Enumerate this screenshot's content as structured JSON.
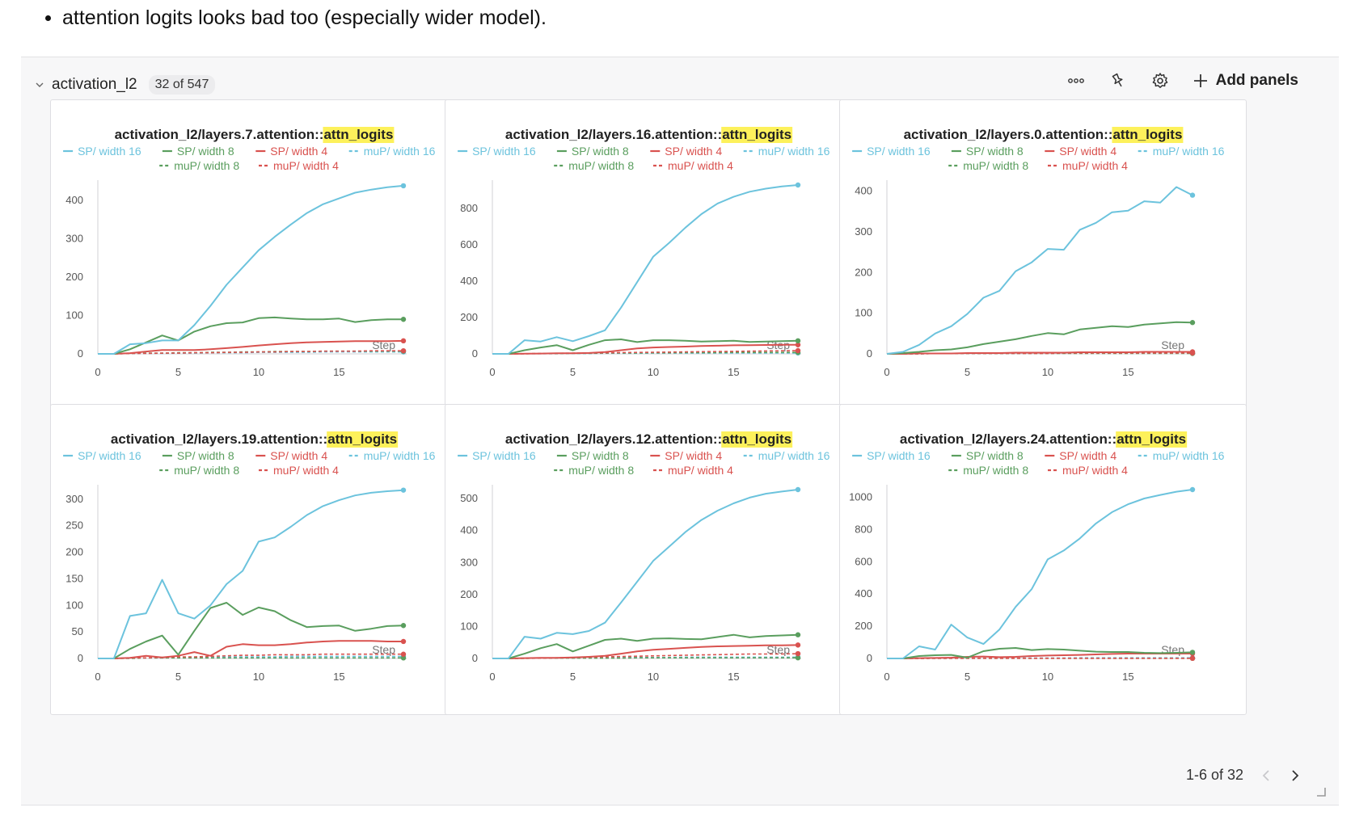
{
  "note": "attention logits looks bad too (especially wider model).",
  "section": {
    "title": "activation_l2",
    "count": "32 of 547",
    "add_panels_label": "Add panels",
    "pager_text": "1-6 of 32"
  },
  "legend": [
    {
      "label": "SP/ width 16",
      "color": "#6cc3dd",
      "dash": false
    },
    {
      "label": "SP/ width 8",
      "color": "#5a9e5e",
      "dash": false
    },
    {
      "label": "SP/ width 4",
      "color": "#d9524f",
      "dash": false
    },
    {
      "label": "muP/ width 16",
      "color": "#6cc3dd",
      "dash": true
    },
    {
      "label": "muP/ width 8",
      "color": "#5a9e5e",
      "dash": true
    },
    {
      "label": "muP/ width 4",
      "color": "#d9524f",
      "dash": true
    }
  ],
  "chart_data": [
    {
      "type": "line",
      "title_prefix": "activation_l2/layers.7.attention::",
      "title_highlight": "attn_logits",
      "xlabel": "Step",
      "x": [
        0,
        1,
        2,
        3,
        4,
        5,
        6,
        7,
        8,
        9,
        10,
        11,
        12,
        13,
        14,
        15,
        16,
        17,
        18,
        19
      ],
      "xticks": [
        0,
        5,
        10,
        15
      ],
      "ylim": [
        0,
        440
      ],
      "yticks": [
        0,
        100,
        200,
        300,
        400
      ],
      "series": [
        {
          "name": "SP/ width 16",
          "values": [
            0,
            0,
            25,
            28,
            35,
            35,
            75,
            125,
            180,
            225,
            270,
            305,
            337,
            367,
            390,
            405,
            420,
            428,
            434,
            438
          ]
        },
        {
          "name": "SP/ width 8",
          "values": [
            0,
            0,
            12,
            30,
            48,
            35,
            58,
            72,
            80,
            82,
            93,
            95,
            92,
            90,
            90,
            92,
            83,
            88,
            90,
            90
          ]
        },
        {
          "name": "SP/ width 4",
          "values": [
            0,
            0,
            2,
            6,
            10,
            10,
            10,
            12,
            15,
            18,
            22,
            25,
            28,
            30,
            31,
            32,
            33,
            33,
            33,
            34
          ]
        },
        {
          "name": "muP/ width 16",
          "values": [
            0,
            0,
            1,
            1,
            1,
            2,
            2,
            3,
            3,
            3,
            4,
            4,
            4,
            4,
            5,
            5,
            5,
            5,
            5,
            5
          ]
        },
        {
          "name": "muP/ width 8",
          "values": [
            0,
            0,
            1,
            2,
            2,
            3,
            3,
            4,
            4,
            5,
            5,
            6,
            6,
            6,
            7,
            7,
            7,
            7,
            7,
            7
          ]
        },
        {
          "name": "muP/ width 4",
          "values": [
            0,
            0,
            1,
            1,
            2,
            2,
            3,
            3,
            4,
            4,
            5,
            5,
            6,
            6,
            7,
            7,
            7,
            8,
            8,
            8
          ]
        }
      ]
    },
    {
      "type": "line",
      "title_prefix": "activation_l2/layers.16.attention::",
      "title_highlight": "attn_logits",
      "xlabel": "Step",
      "x": [
        0,
        1,
        2,
        3,
        4,
        5,
        6,
        7,
        8,
        9,
        10,
        11,
        12,
        13,
        14,
        15,
        16,
        17,
        18,
        19
      ],
      "xticks": [
        0,
        5,
        10,
        15
      ],
      "ylim": [
        0,
        930
      ],
      "yticks": [
        0,
        200,
        400,
        600,
        800
      ],
      "series": [
        {
          "name": "SP/ width 16",
          "values": [
            0,
            0,
            75,
            68,
            92,
            70,
            98,
            130,
            255,
            395,
            535,
            612,
            695,
            770,
            828,
            865,
            893,
            910,
            922,
            930
          ]
        },
        {
          "name": "SP/ width 8",
          "values": [
            0,
            0,
            20,
            35,
            48,
            20,
            50,
            75,
            80,
            65,
            75,
            75,
            72,
            68,
            70,
            72,
            66,
            68,
            70,
            72
          ]
        },
        {
          "name": "SP/ width 4",
          "values": [
            0,
            0,
            1,
            2,
            3,
            3,
            5,
            10,
            20,
            30,
            35,
            38,
            40,
            43,
            45,
            47,
            48,
            49,
            50,
            50
          ]
        },
        {
          "name": "muP/ width 16",
          "values": [
            0,
            0,
            1,
            1,
            1,
            2,
            2,
            3,
            3,
            3,
            4,
            4,
            4,
            4,
            5,
            5,
            5,
            5,
            5,
            5
          ]
        },
        {
          "name": "muP/ width 8",
          "values": [
            0,
            0,
            1,
            2,
            2,
            3,
            3,
            4,
            5,
            5,
            6,
            6,
            7,
            7,
            7,
            8,
            8,
            8,
            8,
            8
          ]
        },
        {
          "name": "muP/ width 4",
          "values": [
            0,
            0,
            1,
            2,
            3,
            4,
            5,
            6,
            7,
            8,
            9,
            10,
            11,
            12,
            13,
            14,
            15,
            16,
            17,
            18
          ]
        }
      ]
    },
    {
      "type": "line",
      "title_prefix": "activation_l2/layers.0.attention::",
      "title_highlight": "attn_logits",
      "xlabel": "Step",
      "x": [
        0,
        1,
        2,
        3,
        4,
        5,
        6,
        7,
        8,
        9,
        10,
        11,
        12,
        13,
        14,
        15,
        16,
        17,
        18,
        19
      ],
      "xticks": [
        0,
        5,
        10,
        15
      ],
      "ylim": [
        0,
        415
      ],
      "yticks": [
        0,
        100,
        200,
        300,
        400
      ],
      "series": [
        {
          "name": "SP/ width 16",
          "values": [
            0,
            5,
            22,
            50,
            68,
            98,
            138,
            155,
            203,
            225,
            258,
            256,
            305,
            322,
            348,
            352,
            375,
            372,
            410,
            390
          ]
        },
        {
          "name": "SP/ width 8",
          "values": [
            0,
            2,
            5,
            9,
            11,
            16,
            24,
            30,
            36,
            44,
            51,
            48,
            60,
            64,
            68,
            66,
            72,
            75,
            78,
            77
          ]
        },
        {
          "name": "SP/ width 4",
          "values": [
            0,
            0,
            1,
            1,
            1,
            2,
            2,
            2,
            3,
            3,
            3,
            3,
            4,
            4,
            4,
            4,
            5,
            5,
            5,
            5
          ]
        },
        {
          "name": "muP/ width 16",
          "values": [
            0,
            0,
            0,
            1,
            1,
            1,
            1,
            1,
            1,
            2,
            2,
            2,
            2,
            2,
            2,
            2,
            2,
            2,
            2,
            2
          ]
        },
        {
          "name": "muP/ width 8",
          "values": [
            0,
            0,
            0,
            1,
            1,
            1,
            1,
            1,
            1,
            1,
            1,
            1,
            1,
            1,
            1,
            1,
            1,
            1,
            1,
            1
          ]
        },
        {
          "name": "muP/ width 4",
          "values": [
            0,
            0,
            0,
            1,
            1,
            1,
            1,
            1,
            1,
            1,
            1,
            2,
            2,
            2,
            2,
            2,
            2,
            2,
            2,
            2
          ]
        }
      ]
    },
    {
      "type": "line",
      "title_prefix": "activation_l2/layers.19.attention::",
      "title_highlight": "attn_logits",
      "xlabel": "Step",
      "x": [
        0,
        1,
        2,
        3,
        4,
        5,
        6,
        7,
        8,
        9,
        10,
        11,
        12,
        13,
        14,
        15,
        16,
        17,
        18,
        19
      ],
      "xticks": [
        0,
        5,
        10,
        15
      ],
      "ylim": [
        0,
        318
      ],
      "yticks": [
        0,
        50,
        100,
        150,
        200,
        250,
        300
      ],
      "series": [
        {
          "name": "SP/ width 16",
          "values": [
            0,
            0,
            80,
            85,
            148,
            85,
            75,
            100,
            140,
            165,
            220,
            228,
            248,
            270,
            287,
            298,
            307,
            312,
            315,
            317
          ]
        },
        {
          "name": "SP/ width 8",
          "values": [
            0,
            0,
            18,
            32,
            43,
            7,
            52,
            95,
            105,
            82,
            96,
            89,
            72,
            59,
            61,
            62,
            52,
            56,
            61,
            62
          ]
        },
        {
          "name": "SP/ width 4",
          "values": [
            0,
            0,
            1,
            5,
            2,
            5,
            12,
            5,
            22,
            27,
            25,
            25,
            27,
            30,
            32,
            33,
            33,
            33,
            32,
            32
          ]
        },
        {
          "name": "muP/ width 16",
          "values": [
            0,
            0,
            1,
            1,
            1,
            2,
            2,
            2,
            3,
            3,
            3,
            3,
            4,
            4,
            4,
            4,
            4,
            4,
            4,
            4
          ]
        },
        {
          "name": "muP/ width 8",
          "values": [
            0,
            0,
            0,
            1,
            1,
            1,
            1,
            1,
            1,
            1,
            1,
            1,
            1,
            1,
            1,
            1,
            1,
            1,
            1,
            1
          ]
        },
        {
          "name": "muP/ width 4",
          "values": [
            0,
            0,
            1,
            1,
            2,
            3,
            3,
            4,
            5,
            6,
            6,
            7,
            7,
            7,
            8,
            8,
            8,
            8,
            8,
            8
          ]
        }
      ]
    },
    {
      "type": "line",
      "title_prefix": "activation_l2/layers.12.attention::",
      "title_highlight": "attn_logits",
      "xlabel": "Step",
      "x": [
        0,
        1,
        2,
        3,
        4,
        5,
        6,
        7,
        8,
        9,
        10,
        11,
        12,
        13,
        14,
        15,
        16,
        17,
        18,
        19
      ],
      "xticks": [
        0,
        5,
        10,
        15
      ],
      "ylim": [
        0,
        528
      ],
      "yticks": [
        0,
        100,
        200,
        300,
        400,
        500
      ],
      "series": [
        {
          "name": "SP/ width 16",
          "values": [
            0,
            0,
            68,
            62,
            80,
            76,
            86,
            112,
            175,
            240,
            305,
            350,
            395,
            433,
            462,
            485,
            503,
            515,
            522,
            528
          ]
        },
        {
          "name": "SP/ width 8",
          "values": [
            0,
            0,
            15,
            32,
            45,
            22,
            40,
            58,
            62,
            55,
            62,
            63,
            61,
            60,
            67,
            74,
            66,
            70,
            72,
            74
          ]
        },
        {
          "name": "SP/ width 4",
          "values": [
            0,
            0,
            1,
            2,
            2,
            3,
            5,
            8,
            15,
            22,
            27,
            30,
            33,
            36,
            38,
            39,
            40,
            41,
            41,
            42
          ]
        },
        {
          "name": "muP/ width 16",
          "values": [
            0,
            0,
            1,
            1,
            1,
            2,
            2,
            2,
            3,
            3,
            3,
            3,
            4,
            4,
            4,
            4,
            4,
            4,
            4,
            4
          ]
        },
        {
          "name": "muP/ width 8",
          "values": [
            0,
            0,
            0,
            1,
            1,
            1,
            1,
            1,
            1,
            2,
            2,
            2,
            2,
            2,
            2,
            2,
            2,
            2,
            2,
            2
          ]
        },
        {
          "name": "muP/ width 4",
          "values": [
            0,
            0,
            1,
            1,
            2,
            3,
            4,
            5,
            6,
            7,
            8,
            9,
            10,
            11,
            12,
            13,
            14,
            14,
            14,
            15
          ]
        }
      ]
    },
    {
      "type": "line",
      "title_prefix": "activation_l2/layers.24.attention::",
      "title_highlight": "attn_logits",
      "xlabel": "Step",
      "x": [
        0,
        1,
        2,
        3,
        4,
        5,
        6,
        7,
        8,
        9,
        10,
        11,
        12,
        13,
        14,
        15,
        16,
        17,
        18,
        19
      ],
      "xticks": [
        0,
        5,
        10,
        15
      ],
      "ylim": [
        0,
        1048
      ],
      "yticks": [
        0,
        200,
        400,
        600,
        800,
        1000
      ],
      "series": [
        {
          "name": "SP/ width 16",
          "values": [
            0,
            0,
            75,
            55,
            210,
            130,
            90,
            180,
            320,
            430,
            615,
            670,
            745,
            838,
            908,
            957,
            993,
            1015,
            1035,
            1048
          ]
        },
        {
          "name": "SP/ width 8",
          "values": [
            0,
            0,
            15,
            20,
            22,
            5,
            45,
            60,
            65,
            52,
            58,
            55,
            48,
            42,
            40,
            40,
            35,
            33,
            35,
            38
          ]
        },
        {
          "name": "SP/ width 4",
          "values": [
            0,
            0,
            2,
            3,
            5,
            10,
            12,
            8,
            10,
            15,
            18,
            20,
            22,
            25,
            28,
            30,
            30,
            30,
            30,
            30
          ]
        },
        {
          "name": "muP/ width 16",
          "values": [
            0,
            0,
            1,
            1,
            1,
            2,
            2,
            2,
            3,
            3,
            3,
            3,
            4,
            4,
            4,
            4,
            4,
            4,
            4,
            4
          ]
        },
        {
          "name": "muP/ width 8",
          "values": [
            0,
            0,
            0,
            1,
            1,
            1,
            1,
            1,
            1,
            1,
            1,
            1,
            1,
            1,
            1,
            1,
            1,
            1,
            1,
            1
          ]
        },
        {
          "name": "muP/ width 4",
          "values": [
            0,
            0,
            0,
            1,
            1,
            1,
            1,
            1,
            1,
            1,
            1,
            1,
            1,
            1,
            1,
            1,
            1,
            1,
            1,
            1
          ]
        }
      ]
    }
  ]
}
